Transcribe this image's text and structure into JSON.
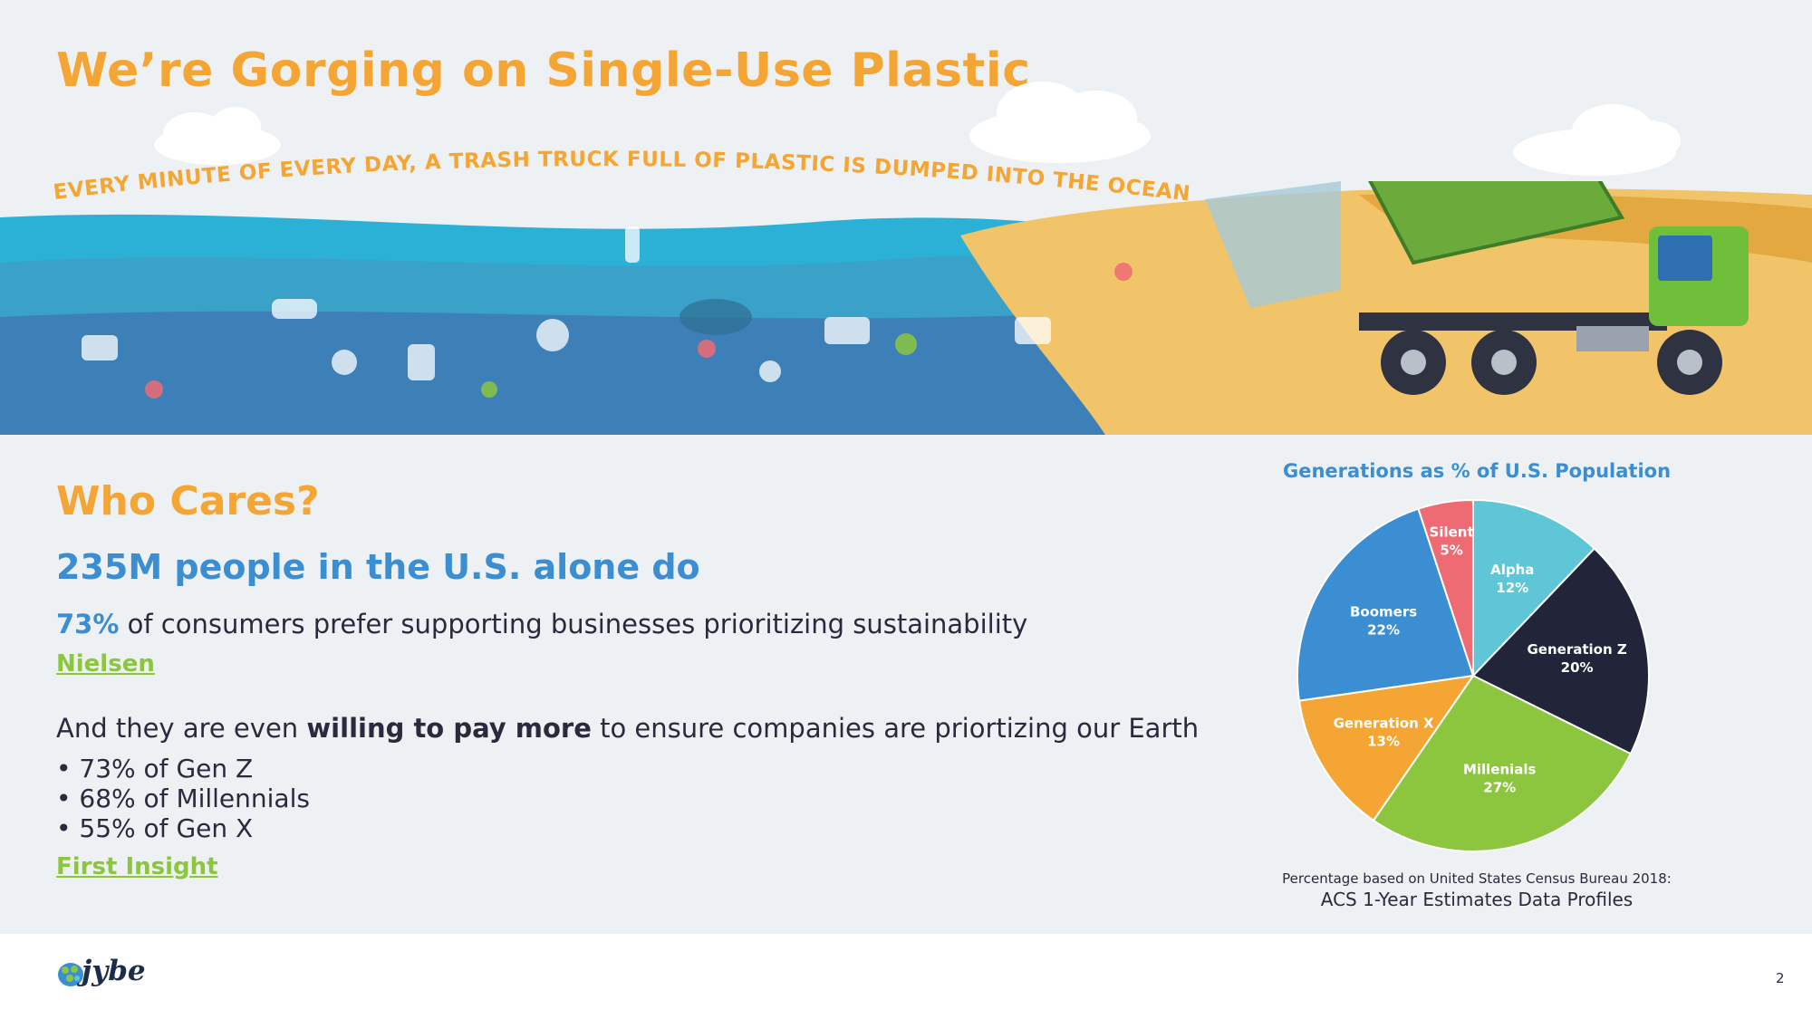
{
  "slide": {
    "title": "We’re Gorging on Single-Use Plastic",
    "banner_text": "EVERY MINUTE OF EVERY DAY, A TRASH TRUCK FULL OF PLASTIC IS DUMPED INTO THE OCEAN",
    "colors": {
      "orange": "#f5a534",
      "blue": "#3a8ed1",
      "green": "#8cc63f",
      "dark": "#2a2a3e"
    }
  },
  "content": {
    "heading": "Who Cares?",
    "subheading": "235M people in the U.S. alone do",
    "stat_pct": "73%",
    "stat_text": "of consumers prefer supporting businesses prioritizing sustainability",
    "source1": "Nielsen",
    "pay_pre": "And they are even",
    "pay_bold": "willing to pay more",
    "pay_post": "to ensure companies are priortizing our Earth",
    "bullets": [
      "• 73% of Gen Z",
      "• 68% of Millennials",
      "• 55% of Gen X"
    ],
    "source2": "First Insight"
  },
  "footer": {
    "logo_text": "jybe",
    "page_number": "2"
  },
  "chart_data": {
    "type": "pie",
    "title": "Generations as % of U.S. Population",
    "slices": [
      {
        "label": "Alpha",
        "value": 12,
        "value_label": "12%",
        "color": "#5ec6d6"
      },
      {
        "label": "Generation Z",
        "value": 20,
        "value_label": "20%",
        "color": "#22243a"
      },
      {
        "label": "Millenials",
        "value": 27,
        "value_label": "27%",
        "color": "#8cc63f"
      },
      {
        "label": "Generation X",
        "value": 13,
        "value_label": "13%",
        "color": "#f5a534"
      },
      {
        "label": "Boomers",
        "value": 22,
        "value_label": "22%",
        "color": "#3a8ed1"
      },
      {
        "label": "Silent",
        "value": 5,
        "value_label": "5%",
        "color": "#ef6b73"
      }
    ],
    "note_line1": "Percentage based on United States Census Bureau 2018:",
    "note_line2": "ACS 1-Year Estimates Data Profiles"
  }
}
